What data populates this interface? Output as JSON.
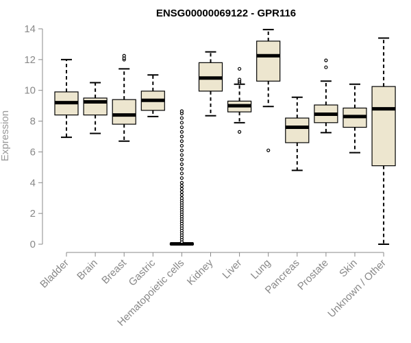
{
  "chart_data": {
    "type": "box",
    "title": "ENSG00000069122 - GPR116",
    "ylabel": "Expression",
    "xlabel": "",
    "ylim": [
      0,
      14
    ],
    "yticks": [
      0,
      2,
      4,
      6,
      8,
      10,
      12,
      14
    ],
    "box_fill": "#ede6cf",
    "box_stroke": "#000000",
    "categories": [
      "Bladder",
      "Brain",
      "Breast",
      "Gastric",
      "Hematopoietic cells",
      "Kidney",
      "Liver",
      "Lung",
      "Pancreas",
      "Prostate",
      "Skin",
      "Unknown / Other"
    ],
    "boxes": [
      {
        "category": "Bladder",
        "whisker_low": 6.95,
        "q1": 8.4,
        "median": 9.2,
        "q3": 9.9,
        "whisker_high": 12.0,
        "outliers": []
      },
      {
        "category": "Brain",
        "whisker_low": 7.2,
        "q1": 8.4,
        "median": 9.25,
        "q3": 9.5,
        "whisker_high": 10.5,
        "outliers": []
      },
      {
        "category": "Breast",
        "whisker_low": 6.7,
        "q1": 7.8,
        "median": 8.4,
        "q3": 9.4,
        "whisker_high": 11.4,
        "outliers": [
          12.0,
          12.1,
          12.25
        ]
      },
      {
        "category": "Gastric",
        "whisker_low": 8.3,
        "q1": 8.7,
        "median": 9.35,
        "q3": 9.95,
        "whisker_high": 11.0,
        "outliers": []
      },
      {
        "category": "Hematopoietic cells",
        "whisker_low": 0.0,
        "q1": 0.0,
        "median": 0.02,
        "q3": 0.05,
        "whisker_high": 0.08,
        "outliers": [
          0.15,
          0.3,
          0.45,
          0.6,
          0.75,
          0.9,
          1.05,
          1.2,
          1.35,
          1.5,
          1.65,
          1.8,
          1.95,
          2.1,
          2.25,
          2.4,
          2.55,
          2.7,
          2.85,
          3.0,
          3.2,
          3.4,
          3.6,
          3.8,
          4.0,
          4.3,
          4.6,
          4.9,
          5.2,
          5.5,
          5.8,
          6.1,
          6.4,
          6.7,
          7.0,
          7.3,
          7.6,
          7.9,
          8.2,
          8.5,
          8.65
        ]
      },
      {
        "category": "Kidney",
        "whisker_low": 8.35,
        "q1": 9.95,
        "median": 10.8,
        "q3": 11.8,
        "whisker_high": 12.5,
        "outliers": []
      },
      {
        "category": "Liver",
        "whisker_low": 7.9,
        "q1": 8.6,
        "median": 9.0,
        "q3": 9.3,
        "whisker_high": 10.4,
        "outliers": [
          7.3,
          10.5,
          10.6,
          10.7,
          11.4
        ]
      },
      {
        "category": "Lung",
        "whisker_low": 8.95,
        "q1": 10.6,
        "median": 12.25,
        "q3": 13.2,
        "whisker_high": 13.95,
        "outliers": [
          6.1
        ]
      },
      {
        "category": "Pancreas",
        "whisker_low": 4.8,
        "q1": 6.6,
        "median": 7.6,
        "q3": 8.2,
        "whisker_high": 9.55,
        "outliers": []
      },
      {
        "category": "Prostate",
        "whisker_low": 7.25,
        "q1": 7.9,
        "median": 8.45,
        "q3": 9.05,
        "whisker_high": 10.6,
        "outliers": [
          11.5,
          11.95
        ]
      },
      {
        "category": "Skin",
        "whisker_low": 5.95,
        "q1": 7.6,
        "median": 8.3,
        "q3": 8.85,
        "whisker_high": 10.4,
        "outliers": []
      },
      {
        "category": "Unknown / Other",
        "whisker_low": 0.0,
        "q1": 5.1,
        "median": 8.8,
        "q3": 10.25,
        "whisker_high": 13.4,
        "outliers": []
      }
    ]
  }
}
